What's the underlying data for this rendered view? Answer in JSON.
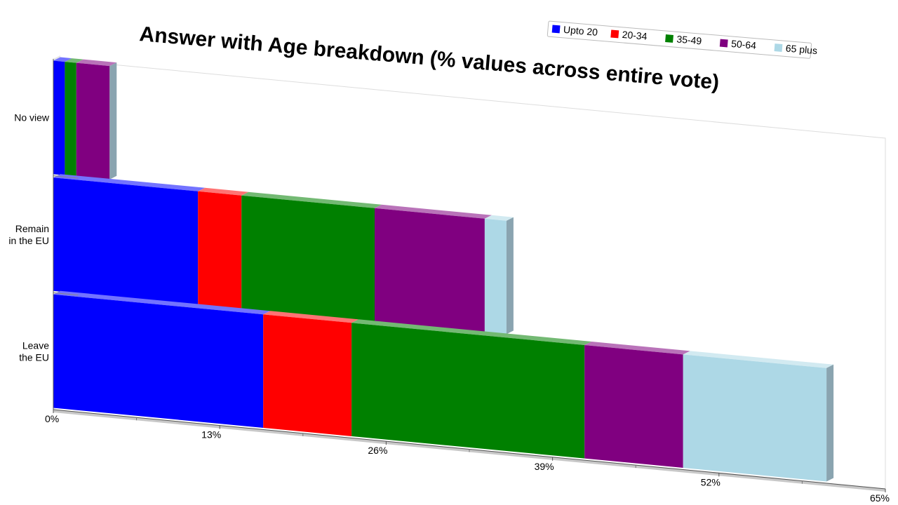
{
  "chart_data": {
    "type": "bar",
    "orientation": "horizontal",
    "stacked": true,
    "three_d": true,
    "title": "Answer with Age breakdown (% values across entire vote)",
    "categories": [
      "No view",
      "Remain in the EU",
      "Leave the EU"
    ],
    "category_label_lines": [
      [
        "No view"
      ],
      [
        "Remain",
        "in the EU"
      ],
      [
        "Leave",
        "the EU"
      ]
    ],
    "series": [
      {
        "name": "Upto 20",
        "color": "#0000FF",
        "values": [
          0.9,
          11.3,
          16.4
        ]
      },
      {
        "name": "20-34",
        "color": "#FF0000",
        "values": [
          0.0,
          3.4,
          6.9
        ]
      },
      {
        "name": "35-49",
        "color": "#008000",
        "values": [
          0.9,
          10.4,
          18.2
        ]
      },
      {
        "name": "50-64",
        "color": "#800080",
        "values": [
          2.6,
          8.6,
          7.7
        ]
      },
      {
        "name": "65 plus",
        "color": "#ADD8E6",
        "values": [
          0.0,
          1.7,
          11.2
        ]
      }
    ],
    "x_ticks": [
      0,
      13,
      26,
      39,
      52,
      65
    ],
    "x_tick_labels": [
      "0%",
      "13%",
      "26%",
      "39%",
      "52%",
      "65%"
    ],
    "xlim": [
      0,
      65
    ],
    "legend_position": "top-right",
    "grid": false
  }
}
